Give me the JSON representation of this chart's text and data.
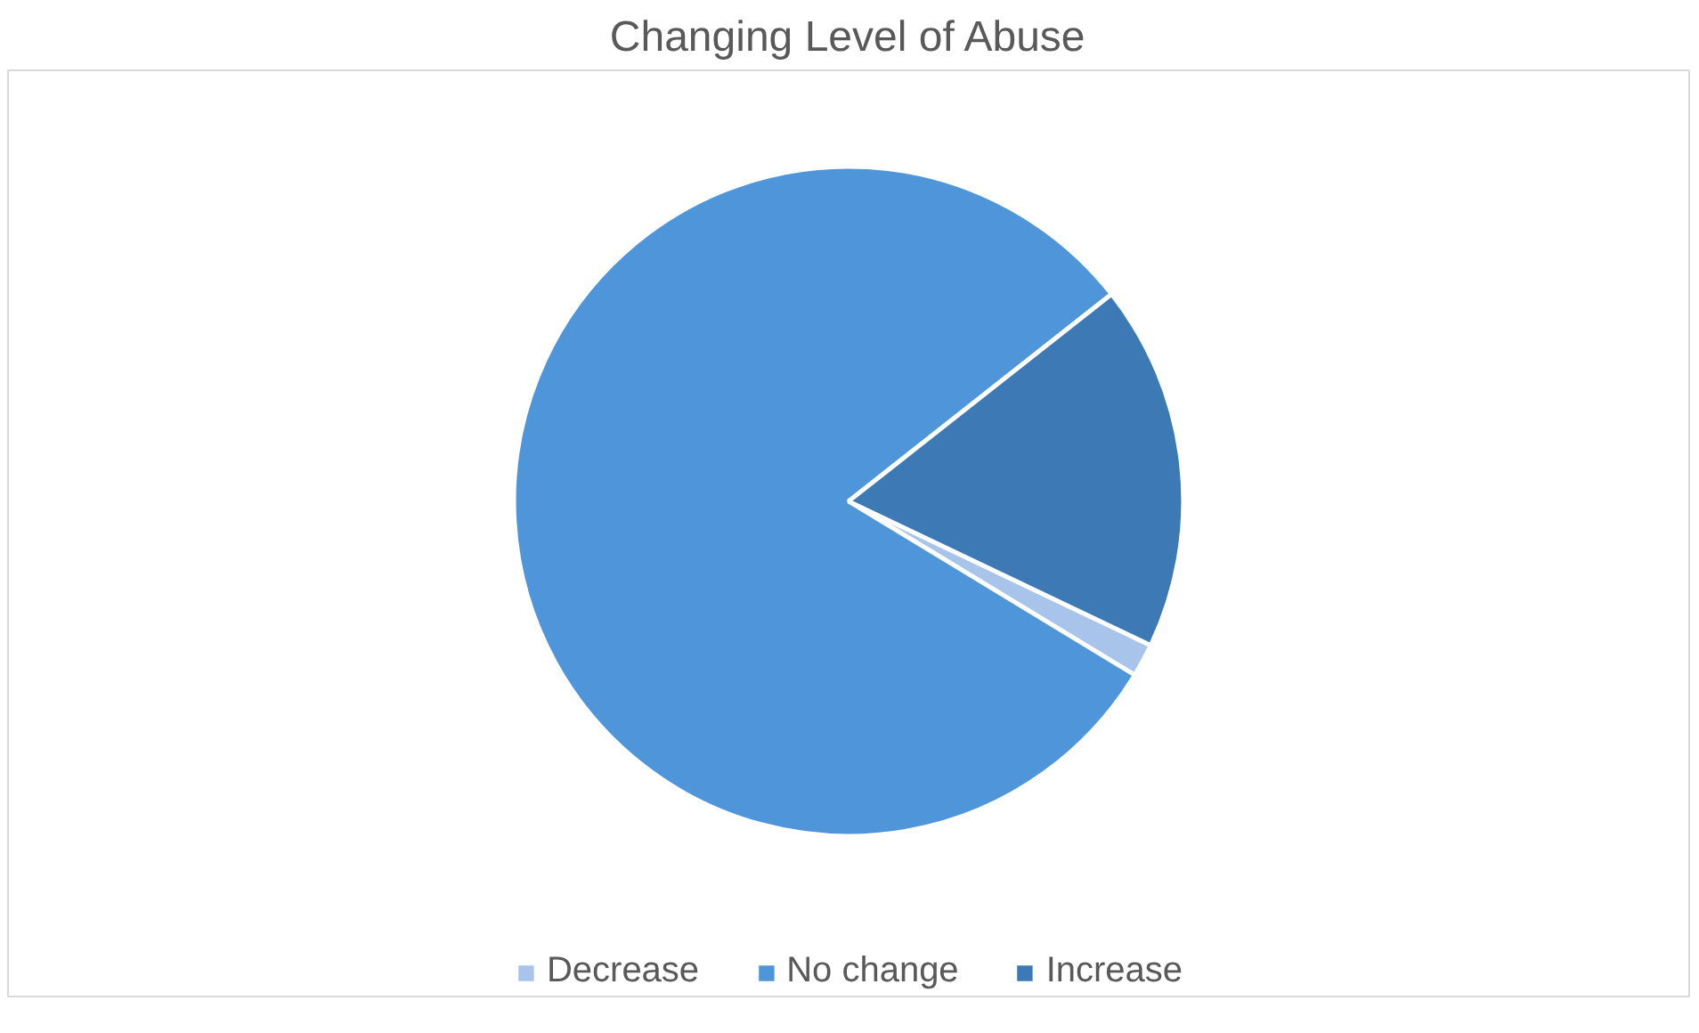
{
  "chart_data": {
    "type": "pie",
    "title": "Changing Level of Abuse",
    "categories": [
      "Decrease",
      "No change",
      "Increase"
    ],
    "values": [
      1.6,
      80.7,
      17.7
    ],
    "colors": [
      "#a9c4eb",
      "#4e95d9",
      "#3d7ab5"
    ],
    "legend": "bottom"
  }
}
